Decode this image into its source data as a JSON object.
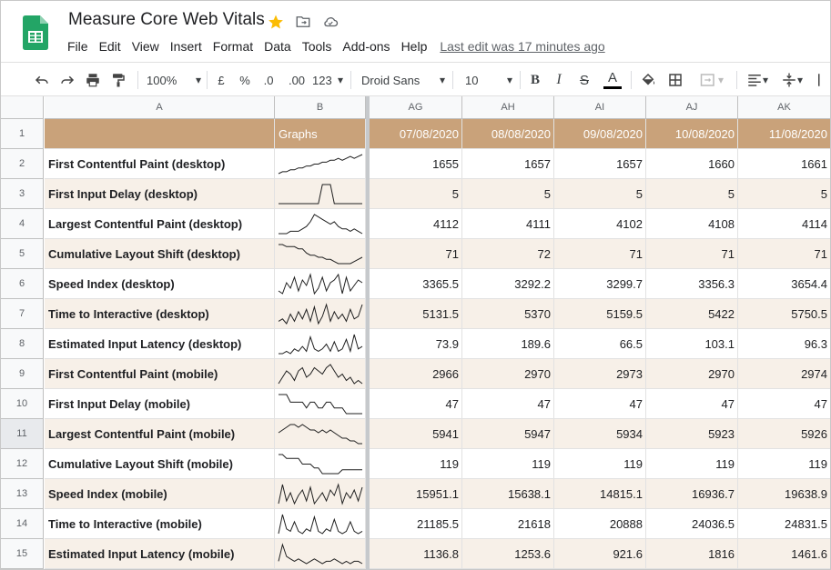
{
  "app": {
    "title": "Measure Core Web Vitals",
    "menu": [
      "File",
      "Edit",
      "View",
      "Insert",
      "Format",
      "Data",
      "Tools",
      "Add-ons",
      "Help"
    ],
    "last_edit": "Last edit was 17 minutes ago"
  },
  "toolbar": {
    "zoom": "100%",
    "currency": "£",
    "percent": "%",
    "dec_decrease": ".0",
    "dec_increase": ".00",
    "more_formats": "123",
    "font": "Droid Sans",
    "font_size": "10",
    "bold": "B",
    "italic": "I",
    "strike": "S",
    "text_color": "A"
  },
  "columns": [
    "A",
    "B",
    "AG",
    "AH",
    "AI",
    "AJ",
    "AK"
  ],
  "header_row": {
    "graphs": "Graphs",
    "dates": [
      "07/08/2020",
      "08/08/2020",
      "09/08/2020",
      "10/08/2020",
      "11/08/2020"
    ]
  },
  "colors": {
    "header_bg": "#c9a27a",
    "alt_row_bg": "#f7f0e8"
  },
  "rows": [
    {
      "num": "2",
      "label": "First Contentful Paint (desktop)",
      "values": [
        "1655",
        "1657",
        "1657",
        "1660",
        "1661"
      ],
      "spark": [
        2,
        3,
        3,
        4,
        4,
        5,
        5,
        6,
        6,
        7,
        7,
        8,
        8,
        9,
        9,
        10,
        9,
        10,
        11,
        10,
        11,
        12
      ]
    },
    {
      "num": "3",
      "label": "First Input Delay (desktop)",
      "values": [
        "5",
        "5",
        "5",
        "5",
        "5"
      ],
      "spark": [
        0,
        0,
        0,
        0,
        0,
        0,
        0,
        0,
        0,
        0,
        0,
        10,
        10,
        10,
        0,
        0,
        0,
        0,
        0,
        0,
        0,
        0
      ]
    },
    {
      "num": "4",
      "label": "Largest Contentful Paint (desktop)",
      "values": [
        "4112",
        "4111",
        "4102",
        "4108",
        "4114"
      ],
      "spark": [
        1,
        1,
        1,
        2,
        2,
        2,
        3,
        4,
        6,
        9,
        8,
        7,
        6,
        5,
        6,
        4,
        3,
        3,
        2,
        3,
        2,
        1
      ]
    },
    {
      "num": "5",
      "label": "Cumulative Layout Shift (desktop)",
      "values": [
        "71",
        "72",
        "71",
        "71",
        "71"
      ],
      "spark": [
        10,
        10,
        9,
        9,
        9,
        8,
        8,
        6,
        5,
        5,
        4,
        4,
        3,
        3,
        2,
        1,
        1,
        1,
        1,
        2,
        3,
        4
      ]
    },
    {
      "num": "6",
      "label": "Speed Index (desktop)",
      "values": [
        "3365.5",
        "3292.2",
        "3299.7",
        "3356.3",
        "3654.4"
      ],
      "spark": [
        3,
        2,
        6,
        4,
        8,
        3,
        7,
        5,
        9,
        2,
        4,
        8,
        3,
        6,
        7,
        9,
        2,
        8,
        3,
        5,
        7,
        6
      ]
    },
    {
      "num": "7",
      "label": "Time to Interactive (desktop)",
      "values": [
        "5131.5",
        "5370",
        "5159.5",
        "5422",
        "5750.5"
      ],
      "spark": [
        2,
        3,
        1,
        5,
        2,
        6,
        3,
        7,
        2,
        8,
        1,
        4,
        9,
        2,
        6,
        3,
        5,
        2,
        7,
        3,
        4,
        9
      ]
    },
    {
      "num": "8",
      "label": "Estimated Input Latency (desktop)",
      "values": [
        "73.9",
        "189.6",
        "66.5",
        "103.1",
        "96.3"
      ],
      "spark": [
        1,
        1,
        2,
        1,
        3,
        2,
        4,
        2,
        8,
        3,
        2,
        3,
        5,
        2,
        6,
        2,
        3,
        7,
        2,
        9,
        3,
        4
      ]
    },
    {
      "num": "9",
      "label": "First Contentful Paint (mobile)",
      "values": [
        "2966",
        "2970",
        "2973",
        "2970",
        "2974"
      ],
      "spark": [
        4,
        6,
        8,
        7,
        5,
        8,
        9,
        6,
        7,
        9,
        8,
        7,
        9,
        10,
        8,
        6,
        7,
        5,
        6,
        4,
        5,
        4
      ]
    },
    {
      "num": "10",
      "label": "First Input Delay (mobile)",
      "values": [
        "47",
        "47",
        "47",
        "47",
        "47"
      ],
      "spark": [
        10,
        10,
        10,
        6,
        6,
        6,
        6,
        3,
        6,
        6,
        3,
        3,
        6,
        6,
        3,
        3,
        3,
        0,
        0,
        0,
        0,
        0
      ]
    },
    {
      "num": "11",
      "label": "Largest Contentful Paint (mobile)",
      "values": [
        "5941",
        "5947",
        "5934",
        "5923",
        "5926"
      ],
      "spark": [
        5,
        6,
        7,
        8,
        8,
        7,
        8,
        7,
        6,
        6,
        5,
        6,
        5,
        6,
        5,
        4,
        3,
        3,
        2,
        2,
        1,
        1
      ]
    },
    {
      "num": "12",
      "label": "Cumulative Layout Shift (mobile)",
      "values": [
        "119",
        "119",
        "119",
        "119",
        "119"
      ],
      "spark": [
        10,
        10,
        8,
        8,
        8,
        8,
        5,
        5,
        5,
        3,
        3,
        0,
        0,
        0,
        0,
        0,
        2,
        2,
        2,
        2,
        2,
        2
      ]
    },
    {
      "num": "13",
      "label": "Speed Index (mobile)",
      "values": [
        "15951.1",
        "15638.1",
        "14815.1",
        "16936.7",
        "19638.9"
      ],
      "spark": [
        2,
        9,
        3,
        6,
        2,
        5,
        7,
        3,
        8,
        2,
        4,
        6,
        3,
        7,
        5,
        9,
        2,
        6,
        4,
        7,
        3,
        8
      ]
    },
    {
      "num": "14",
      "label": "Time to Interactive (mobile)",
      "values": [
        "21185.5",
        "21618",
        "20888",
        "24036.5",
        "24831.5"
      ],
      "spark": [
        1,
        9,
        3,
        2,
        6,
        2,
        1,
        3,
        2,
        8,
        2,
        1,
        3,
        2,
        7,
        2,
        1,
        2,
        6,
        2,
        1,
        2
      ]
    },
    {
      "num": "15",
      "label": "Estimated Input Latency (mobile)",
      "values": [
        "1136.8",
        "1253.6",
        "921.6",
        "1816",
        "1461.6"
      ],
      "spark": [
        2,
        9,
        4,
        3,
        2,
        3,
        2,
        1,
        2,
        3,
        2,
        1,
        2,
        2,
        3,
        2,
        1,
        2,
        1,
        2,
        2,
        1
      ]
    }
  ]
}
